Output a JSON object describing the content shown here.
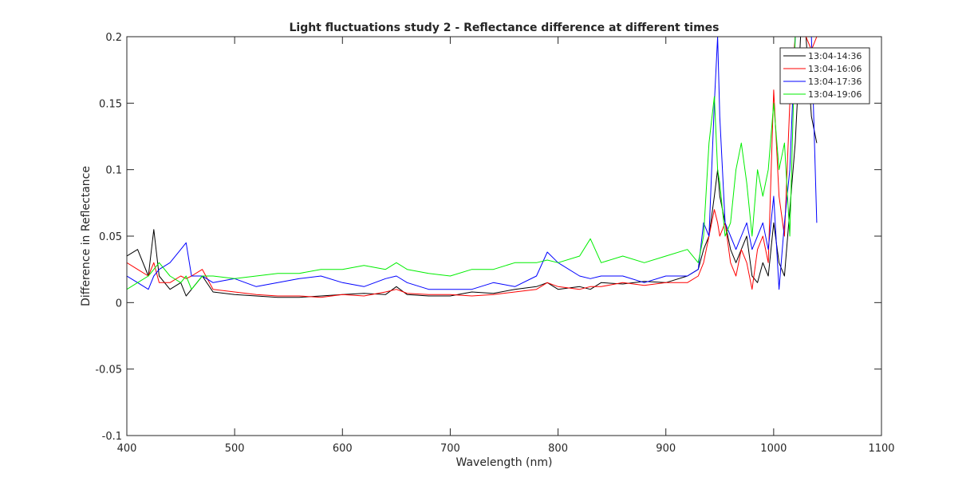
{
  "chart_data": {
    "type": "line",
    "title": "Light fluctuations study 2 - Reflectance difference at different times",
    "xlabel": "Wavelength (nm)",
    "ylabel": "Difference in Reflectance",
    "xlim": [
      400,
      1100
    ],
    "ylim": [
      -0.1,
      0.2
    ],
    "xticks": [
      400,
      500,
      600,
      700,
      800,
      900,
      1000,
      1100
    ],
    "yticks": [
      -0.1,
      -0.05,
      0,
      0.05,
      0.1,
      0.15,
      0.2
    ],
    "ytick_labels": [
      "-0.1",
      "-0.05",
      "0",
      "0.05",
      "0.1",
      "0.15",
      "0.2"
    ],
    "grid": false,
    "legend_position": "top-right",
    "x": [
      400,
      410,
      420,
      425,
      430,
      440,
      450,
      455,
      460,
      470,
      480,
      500,
      520,
      540,
      560,
      580,
      600,
      620,
      640,
      650,
      660,
      680,
      700,
      720,
      740,
      760,
      780,
      790,
      800,
      820,
      830,
      840,
      860,
      880,
      900,
      920,
      930,
      935,
      940,
      945,
      948,
      950,
      955,
      960,
      965,
      970,
      975,
      980,
      985,
      990,
      995,
      1000,
      1005,
      1010,
      1015,
      1020,
      1025,
      1030,
      1035,
      1040
    ],
    "series": [
      {
        "name": "13:04-14:36",
        "color": "#000000",
        "values": [
          0.035,
          0.04,
          0.02,
          0.055,
          0.02,
          0.01,
          0.015,
          0.005,
          0.01,
          0.02,
          0.008,
          0.006,
          0.005,
          0.004,
          0.004,
          0.005,
          0.006,
          0.007,
          0.006,
          0.012,
          0.006,
          0.005,
          0.005,
          0.008,
          0.007,
          0.01,
          0.012,
          0.015,
          0.01,
          0.012,
          0.01,
          0.015,
          0.014,
          0.016,
          0.015,
          0.02,
          0.025,
          0.04,
          0.05,
          0.08,
          0.1,
          0.08,
          0.06,
          0.04,
          0.03,
          0.04,
          0.05,
          0.02,
          0.015,
          0.03,
          0.02,
          0.06,
          0.03,
          0.02,
          0.07,
          0.12,
          0.2,
          0.2,
          0.14,
          0.12
        ]
      },
      {
        "name": "13:04-16:06",
        "color": "#ff0000",
        "values": [
          0.03,
          0.025,
          0.02,
          0.03,
          0.015,
          0.015,
          0.02,
          0.018,
          0.02,
          0.025,
          0.01,
          0.008,
          0.006,
          0.005,
          0.005,
          0.004,
          0.006,
          0.005,
          0.008,
          0.01,
          0.007,
          0.006,
          0.006,
          0.005,
          0.006,
          0.008,
          0.01,
          0.015,
          0.012,
          0.01,
          0.012,
          0.012,
          0.015,
          0.013,
          0.015,
          0.015,
          0.02,
          0.03,
          0.05,
          0.07,
          0.06,
          0.05,
          0.06,
          0.03,
          0.02,
          0.04,
          0.03,
          0.01,
          0.04,
          0.05,
          0.03,
          0.16,
          0.08,
          0.05,
          0.15,
          0.2,
          0.2,
          0.2,
          0.19,
          0.2
        ]
      },
      {
        "name": "13:04-17:36",
        "color": "#0000ff",
        "values": [
          0.02,
          0.015,
          0.01,
          0.02,
          0.025,
          0.03,
          0.04,
          0.045,
          0.02,
          0.02,
          0.015,
          0.018,
          0.012,
          0.015,
          0.018,
          0.02,
          0.015,
          0.012,
          0.018,
          0.02,
          0.015,
          0.01,
          0.01,
          0.01,
          0.015,
          0.012,
          0.02,
          0.038,
          0.03,
          0.02,
          0.018,
          0.02,
          0.02,
          0.015,
          0.02,
          0.02,
          0.025,
          0.06,
          0.05,
          0.15,
          0.2,
          0.14,
          0.06,
          0.05,
          0.04,
          0.05,
          0.06,
          0.04,
          0.05,
          0.06,
          0.04,
          0.08,
          0.01,
          0.06,
          0.1,
          0.2,
          0.2,
          0.2,
          0.2,
          0.06
        ]
      },
      {
        "name": "13:04-19:06",
        "color": "#00ee00",
        "values": [
          0.01,
          0.015,
          0.02,
          0.025,
          0.03,
          0.02,
          0.015,
          0.02,
          0.01,
          0.02,
          0.02,
          0.018,
          0.02,
          0.022,
          0.022,
          0.025,
          0.025,
          0.028,
          0.025,
          0.03,
          0.025,
          0.022,
          0.02,
          0.025,
          0.025,
          0.03,
          0.03,
          0.032,
          0.03,
          0.035,
          0.048,
          0.03,
          0.035,
          0.03,
          0.035,
          0.04,
          0.03,
          0.05,
          0.12,
          0.155,
          0.1,
          0.09,
          0.05,
          0.06,
          0.1,
          0.12,
          0.09,
          0.05,
          0.1,
          0.08,
          0.1,
          0.15,
          0.1,
          0.12,
          0.05,
          0.2,
          0.2,
          0.2,
          0.2,
          0.2
        ]
      }
    ]
  }
}
